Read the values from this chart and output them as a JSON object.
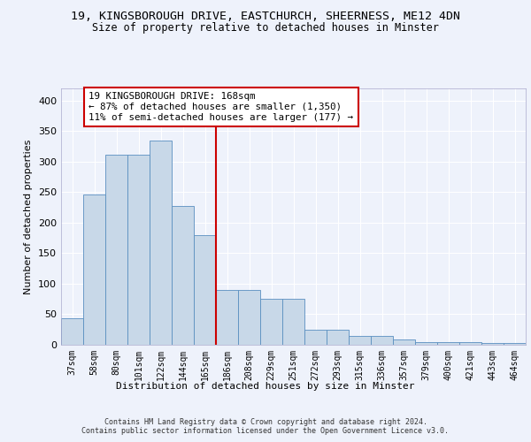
{
  "title1": "19, KINGSBOROUGH DRIVE, EASTCHURCH, SHEERNESS, ME12 4DN",
  "title2": "Size of property relative to detached houses in Minster",
  "xlabel": "Distribution of detached houses by size in Minster",
  "ylabel": "Number of detached properties",
  "bin_labels": [
    "37sqm",
    "58sqm",
    "80sqm",
    "101sqm",
    "122sqm",
    "144sqm",
    "165sqm",
    "186sqm",
    "208sqm",
    "229sqm",
    "251sqm",
    "272sqm",
    "293sqm",
    "315sqm",
    "336sqm",
    "357sqm",
    "379sqm",
    "400sqm",
    "421sqm",
    "443sqm",
    "464sqm"
  ],
  "bar_values": [
    44,
    246,
    312,
    312,
    335,
    227,
    180,
    90,
    90,
    75,
    75,
    25,
    25,
    15,
    15,
    9,
    5,
    5,
    5,
    3,
    3
  ],
  "bar_color": "#c8d8e8",
  "bar_edge_color": "#5a8fc0",
  "vline_color": "#cc0000",
  "annotation_text": "19 KINGSBOROUGH DRIVE: 168sqm\n← 87% of detached houses are smaller (1,350)\n11% of semi-detached houses are larger (177) →",
  "annotation_box_color": "#cc0000",
  "ylim": [
    0,
    420
  ],
  "yticks": [
    0,
    50,
    100,
    150,
    200,
    250,
    300,
    350,
    400
  ],
  "footer_text": "Contains HM Land Registry data © Crown copyright and database right 2024.\nContains public sector information licensed under the Open Government Licence v3.0.",
  "bg_color": "#eef2fb",
  "grid_color": "#ffffff"
}
